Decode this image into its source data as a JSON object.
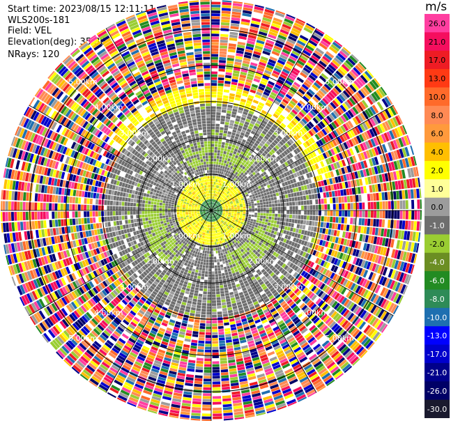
{
  "info": {
    "start_time": "Start time: 2023/08/15 12:11:11",
    "instrument": "WLS200s-181",
    "field": "Field: VEL",
    "elevation": "Elevation(deg): 35.30",
    "nrays": "NRays: 120"
  },
  "colorbar": {
    "unit": "m/s",
    "ticks": [
      "26.0",
      "21.0",
      "17.0",
      "13.0",
      "10.0",
      "8.0",
      "6.0",
      "4.0",
      "2.0",
      "1.0",
      "0.0",
      "-1.0",
      "-2.0",
      "-4.0",
      "-6.0",
      "-8.0",
      "-10.0",
      "-13.0",
      "-17.0",
      "-21.0",
      "-26.0",
      "-30.0"
    ],
    "colors": [
      "#ff3ea0",
      "#f50e5e",
      "#ee1c24",
      "#ff3a14",
      "#ff6a2a",
      "#ff8a54",
      "#ff9a3c",
      "#ffbf00",
      "#ffff00",
      "#ffff99",
      "#9c9c9c",
      "#6e6e6e",
      "#9acd32",
      "#6b8e23",
      "#228b22",
      "#2e8b57",
      "#1e6fb0",
      "#0000ff",
      "#0000cd",
      "#00008b",
      "#000066",
      "#1a1a2e"
    ]
  },
  "chart_data": {
    "type": "heatmap",
    "projection": "polar-ppi",
    "field": "VEL",
    "units": "m/s",
    "nrays": 120,
    "elevation_deg": 35.3,
    "range_rings_km": [
      {
        "label": "1.00km",
        "km": 1.0
      },
      {
        "label": "2.00km",
        "km": 2.0
      },
      {
        "label": "3.00km",
        "km": 3.0
      },
      {
        "label": "4.00km",
        "km": 4.0
      },
      {
        "label": "5.00km",
        "km": 5.0
      }
    ],
    "max_range_km": 5.8,
    "value_range": [
      -30.0,
      26.0
    ],
    "regions": [
      {
        "from_km": 0.0,
        "to_km": 0.3,
        "typical_value": -6.0
      },
      {
        "from_km": 0.3,
        "to_km": 0.9,
        "typical_value": 2.0
      },
      {
        "from_km": 0.9,
        "to_km": 2.9,
        "typical_value": 0.0
      },
      {
        "from_km": 2.9,
        "to_km": 5.8,
        "typical_value": "noise"
      }
    ]
  }
}
